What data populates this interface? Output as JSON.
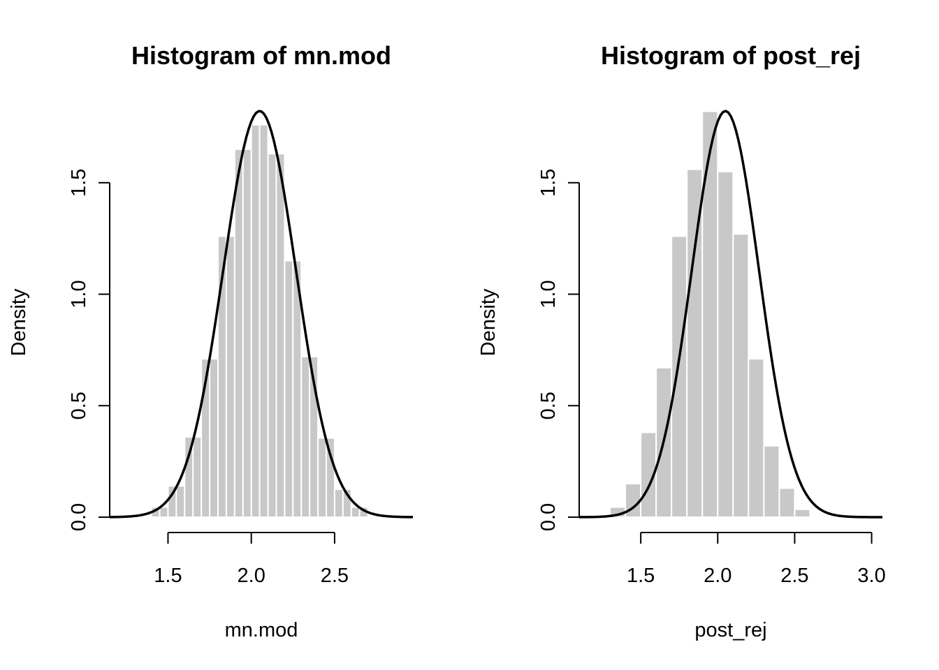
{
  "chart_data": [
    {
      "type": "bar",
      "subtype": "histogram-with-density-curve",
      "title": "Histogram of mn.mod",
      "xlabel": "mn.mod",
      "ylabel": "Density",
      "xticks": [
        1.5,
        2.0,
        2.5
      ],
      "xtick_labels": [
        "1.5",
        "2.0",
        "2.5"
      ],
      "yticks": [
        0.0,
        0.5,
        1.0,
        1.5
      ],
      "ytick_labels": [
        "0.0",
        "0.5",
        "1.0",
        "1.5"
      ],
      "xlim": [
        1.15,
        2.97
      ],
      "ylim": [
        0,
        1.85
      ],
      "bar_color": "#c8c8c8",
      "curve_color": "#000000",
      "bins": {
        "edges": [
          1.35,
          1.4,
          1.45,
          1.5,
          1.55,
          1.6,
          1.65,
          1.7,
          1.75,
          1.8,
          1.85,
          1.9,
          1.95,
          2.0,
          2.05,
          2.1,
          2.15,
          2.2,
          2.25,
          2.3,
          2.35,
          2.4,
          2.45,
          2.5,
          2.55,
          2.6,
          2.65,
          2.7
        ],
        "density": [
          0.004,
          0.045,
          0.045,
          0.14,
          0.14,
          0.36,
          0.36,
          0.71,
          0.71,
          1.26,
          1.26,
          1.65,
          1.65,
          1.76,
          1.76,
          1.63,
          1.63,
          1.15,
          1.15,
          0.72,
          0.72,
          0.355,
          0.355,
          0.125,
          0.125,
          0.045,
          0.045
        ]
      },
      "curve": {
        "kind": "normal",
        "mean": 2.05,
        "sd": 0.219,
        "x_from": 1.15,
        "x_to": 2.97
      }
    },
    {
      "type": "bar",
      "subtype": "histogram-with-density-curve",
      "title": "Histogram of post_rej",
      "xlabel": "post_rej",
      "ylabel": "Density",
      "xticks": [
        1.5,
        2.0,
        2.5,
        3.0
      ],
      "xtick_labels": [
        "1.5",
        "2.0",
        "2.5",
        "3.0"
      ],
      "yticks": [
        0.0,
        0.5,
        1.0,
        1.5
      ],
      "ytick_labels": [
        "0.0",
        "0.5",
        "1.0",
        "1.5"
      ],
      "xlim": [
        1.1,
        3.07
      ],
      "ylim": [
        0,
        1.85
      ],
      "bar_color": "#c8c8c8",
      "curve_color": "#000000",
      "bins": {
        "edges": [
          1.3,
          1.4,
          1.5,
          1.6,
          1.7,
          1.8,
          1.9,
          2.0,
          2.1,
          2.2,
          2.3,
          2.4,
          2.5,
          2.6,
          2.7,
          2.8
        ],
        "density": [
          0.045,
          0.15,
          0.38,
          0.67,
          1.26,
          1.56,
          1.82,
          1.55,
          1.27,
          0.71,
          0.32,
          0.13,
          0.035,
          0.005,
          0.002
        ]
      },
      "curve": {
        "kind": "normal",
        "mean": 2.05,
        "sd": 0.219,
        "x_from": 1.1,
        "x_to": 3.07
      }
    }
  ]
}
